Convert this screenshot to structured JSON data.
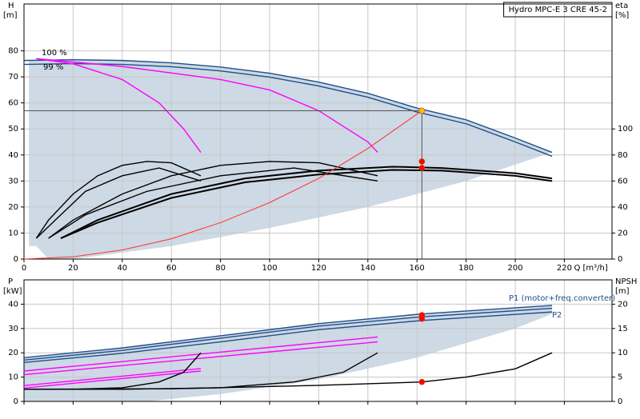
{
  "chart_data": [
    {
      "type": "line",
      "title": "Hydro MPC-E 3 CRE 45-2",
      "ylabel": "H",
      "yunit": "[m]",
      "y2label": "eta",
      "y2unit": "[%]",
      "xlabel": "Q [m³/h]",
      "xlim": [
        0,
        239.4
      ],
      "xticks": [
        0,
        20,
        40,
        60,
        80,
        100,
        120,
        140,
        160,
        180,
        200,
        220
      ],
      "ylim": [
        0,
        98
      ],
      "yticks": [
        0,
        10,
        20,
        30,
        40,
        50,
        60,
        70,
        80
      ],
      "y2lim": [
        0,
        196
      ],
      "y2ticks": [
        0,
        20,
        40,
        60,
        80,
        100
      ],
      "grid": true,
      "shade_color": "#cdd9e4",
      "shade": {
        "x": [
          2,
          2,
          20,
          40,
          60,
          80,
          100,
          120,
          140,
          160,
          180,
          200,
          215,
          180,
          140,
          100,
          60,
          20,
          10,
          5
        ],
        "values": [
          5,
          76.3,
          76.6,
          76.3,
          75.4,
          73.8,
          71.4,
          68,
          63.7,
          58,
          53.5,
          46.5,
          41,
          30,
          20,
          12,
          5,
          0,
          0,
          5
        ]
      },
      "annotations": [
        "100 %",
        "99 %"
      ],
      "series": [
        {
          "color": "#1f4e8c",
          "x": [
            0,
            20,
            40,
            60,
            80,
            100,
            120,
            140,
            160,
            180,
            200,
            215
          ],
          "values": [
            76.3,
            76.6,
            76.3,
            75.4,
            73.8,
            71.4,
            68,
            63.7,
            58,
            53.5,
            46.5,
            41
          ]
        },
        {
          "color": "#1f4e8c",
          "x": [
            0,
            20,
            40,
            60,
            80,
            100,
            120,
            140,
            160,
            180,
            200,
            215
          ],
          "values": [
            74.8,
            75.1,
            74.8,
            73.9,
            72.3,
            69.9,
            66.5,
            62.2,
            56.5,
            52,
            45,
            39.5
          ]
        },
        {
          "color": "#ff00ff",
          "x": [
            5,
            20,
            40,
            55,
            65,
            72
          ],
          "values": [
            77,
            75,
            69,
            60,
            50,
            41
          ]
        },
        {
          "color": "#ff00ff",
          "x": [
            5,
            40,
            80,
            100,
            120,
            140,
            144
          ],
          "values": [
            77,
            74,
            69,
            65,
            57,
            45,
            41
          ]
        },
        {
          "color": "#000000",
          "axis": "y2",
          "x": [
            5,
            10,
            20,
            30,
            40,
            50,
            60,
            72
          ],
          "values": [
            16,
            30,
            50,
            64,
            72,
            75,
            74,
            64
          ]
        },
        {
          "color": "#000000",
          "axis": "y2",
          "x": [
            5,
            15,
            25,
            40,
            55,
            72
          ],
          "values": [
            16,
            34,
            52,
            64,
            70,
            60
          ]
        },
        {
          "color": "#000000",
          "axis": "y2",
          "x": [
            10,
            20,
            40,
            60,
            80,
            100,
            120,
            144
          ],
          "values": [
            16,
            30,
            50,
            64,
            72,
            75,
            74,
            64
          ]
        },
        {
          "color": "#000000",
          "axis": "y2",
          "x": [
            10,
            25,
            50,
            80,
            110,
            144
          ],
          "values": [
            16,
            34,
            52,
            64,
            70,
            60
          ]
        },
        {
          "color": "#000000",
          "axis": "y2",
          "width": 2,
          "x": [
            15,
            30,
            60,
            90,
            120,
            150,
            170,
            200,
            215
          ],
          "values": [
            16,
            30,
            50,
            62,
            68,
            71,
            70,
            66,
            62
          ]
        },
        {
          "color": "#000000",
          "axis": "y2",
          "width": 2,
          "x": [
            15,
            30,
            60,
            90,
            120,
            150,
            170,
            200,
            215
          ],
          "values": [
            16,
            28,
            47,
            59,
            65,
            68.5,
            68,
            64,
            60
          ]
        },
        {
          "color": "#ff3030",
          "width": 1,
          "x": [
            0,
            20,
            40,
            60,
            80,
            100,
            120,
            140,
            162
          ],
          "values": [
            0,
            0.9,
            3.5,
            7.8,
            14,
            21.7,
            31,
            42.5,
            57
          ]
        }
      ],
      "points": [
        {
          "x": 162,
          "y": 57,
          "color": "#ffc000",
          "guides": true
        },
        {
          "x": 162,
          "y": 75,
          "color": "#ff0000",
          "axis": "y2"
        },
        {
          "x": 162,
          "y": 70,
          "color": "#ff0000",
          "axis": "y2"
        }
      ]
    },
    {
      "type": "line",
      "ylabel": "P",
      "yunit": "[kW]",
      "y2label": "NPSH",
      "y2unit": "[m]",
      "ylim": [
        0,
        50
      ],
      "yticks": [
        0,
        10,
        20,
        30,
        40
      ],
      "y2lim": [
        0,
        25
      ],
      "y2ticks": [
        0,
        5,
        10,
        15,
        20
      ],
      "grid": true,
      "shade_color": "#cdd9e4",
      "shade": {
        "x": [
          0,
          40,
          80,
          120,
          162,
          200,
          215,
          215,
          200,
          160,
          120,
          80,
          50,
          0
        ],
        "values": [
          18,
          22,
          27,
          32,
          36,
          38.5,
          39.5,
          36,
          30,
          18,
          9,
          3,
          0,
          0
        ]
      },
      "annotations": [
        "P1 (motor+freq.converter)",
        "P2"
      ],
      "series": [
        {
          "name": "P1 (motor+freq.converter)",
          "color": "#1f4e8c",
          "x": [
            0,
            40,
            80,
            120,
            162,
            200,
            215
          ],
          "values": [
            18,
            22,
            27,
            32,
            36,
            38.5,
            39.5
          ]
        },
        {
          "color": "#1f4e8c",
          "x": [
            0,
            40,
            80,
            120,
            162,
            200,
            215
          ],
          "values": [
            17,
            21,
            26,
            31,
            34.8,
            37.3,
            38.3
          ]
        },
        {
          "name": "P2",
          "color": "#1f4e8c",
          "x": [
            0,
            40,
            80,
            120,
            162,
            200,
            215
          ],
          "values": [
            16,
            19.8,
            24.5,
            29.5,
            33.3,
            35.8,
            36.8
          ]
        },
        {
          "color": "#ff00ff",
          "x": [
            0,
            72
          ],
          "values": [
            6.5,
            13.5
          ]
        },
        {
          "color": "#ff00ff",
          "x": [
            0,
            72
          ],
          "values": [
            5.5,
            12.5
          ]
        },
        {
          "color": "#ff00ff",
          "x": [
            0,
            144
          ],
          "values": [
            12.5,
            26.5
          ]
        },
        {
          "color": "#ff00ff",
          "x": [
            0,
            144
          ],
          "values": [
            11,
            24.5
          ]
        },
        {
          "color": "#000000",
          "axis": "y2",
          "x": [
            0,
            20,
            40,
            55,
            65,
            72
          ],
          "values": [
            2.5,
            2.5,
            2.8,
            4,
            6,
            10
          ]
        },
        {
          "color": "#000000",
          "axis": "y2",
          "x": [
            0,
            40,
            80,
            110,
            130,
            144
          ],
          "values": [
            2.5,
            2.5,
            2.8,
            4,
            6,
            10
          ]
        },
        {
          "color": "#000000",
          "axis": "y2",
          "x": [
            0,
            60,
            120,
            162,
            180,
            200,
            215
          ],
          "values": [
            2.5,
            2.6,
            3.3,
            4,
            5,
            6.7,
            10
          ]
        }
      ],
      "points": [
        {
          "x": 162,
          "y": 35.5,
          "color": "#ff0000"
        },
        {
          "x": 162,
          "y": 34,
          "color": "#ff0000"
        },
        {
          "x": 162,
          "y": 4,
          "color": "#ff0000",
          "axis": "y2"
        }
      ]
    }
  ]
}
